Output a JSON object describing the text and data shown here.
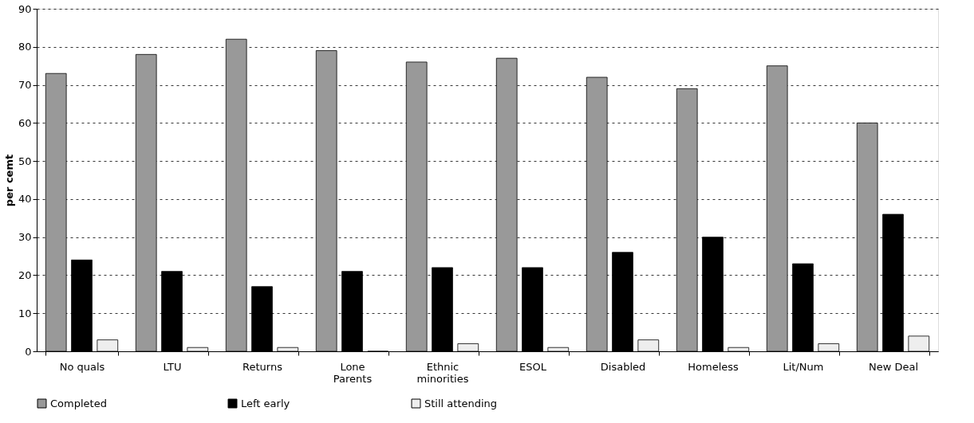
{
  "chart_data": {
    "type": "bar",
    "ylabel": "per cemt",
    "categories": [
      "No quals",
      "LTU",
      "Returns",
      "Lone\nParents",
      "Ethnic\nminorities",
      "ESOL",
      "Disabled",
      "Homeless",
      "Lit/Num",
      "New Deal"
    ],
    "series": [
      {
        "name": "Completed",
        "color": "#999999",
        "values": [
          73,
          78,
          82,
          79,
          76,
          77,
          72,
          69,
          75,
          60
        ]
      },
      {
        "name": "Left early",
        "color": "#000000",
        "values": [
          24,
          21,
          17,
          21,
          22,
          22,
          26,
          30,
          23,
          36
        ]
      },
      {
        "name": "Still attending",
        "color": "#eeeeee",
        "values": [
          3,
          1,
          1,
          0,
          2,
          1,
          3,
          1,
          2,
          4
        ]
      }
    ],
    "ylim": [
      0,
      90
    ],
    "yticks": [
      0,
      10,
      20,
      30,
      40,
      50,
      60,
      70,
      80,
      90
    ],
    "grid": "y",
    "legend": "bottom"
  }
}
